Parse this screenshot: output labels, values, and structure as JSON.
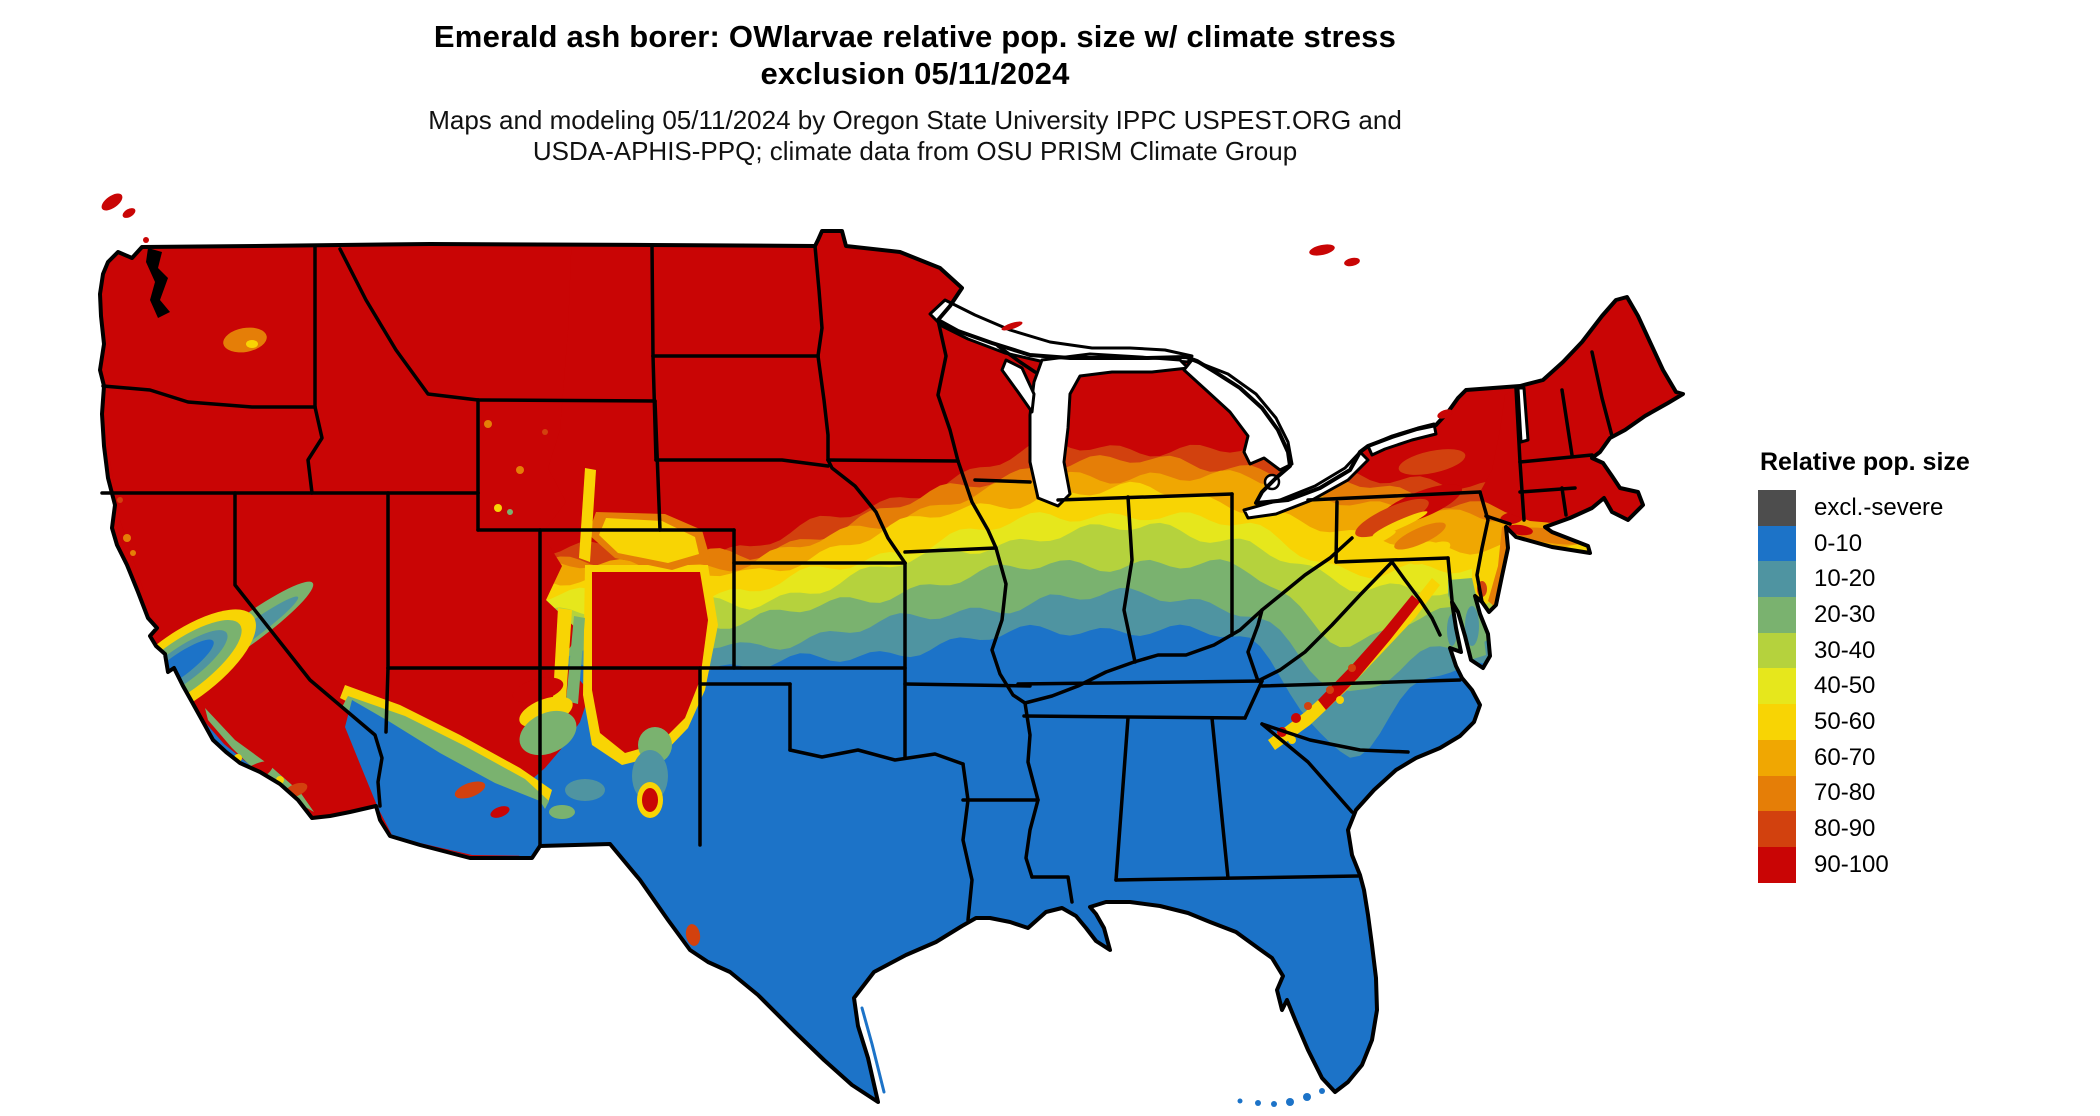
{
  "title": {
    "line1": "Emerald ash borer: OWlarvae relative pop. size w/ climate stress",
    "line2": "exclusion 05/11/2024"
  },
  "subtitle": {
    "line1": "Maps and modeling 05/11/2024 by Oregon State University IPPC USPEST.ORG and",
    "line2": "USDA-APHIS-PPQ; climate data from OSU PRISM Climate Group"
  },
  "legend": {
    "title": "Relative pop. size",
    "items": [
      {
        "label": "excl.-severe",
        "color": "#4d4d4d"
      },
      {
        "label": "0-10",
        "color": "#1c73c8"
      },
      {
        "label": "10-20",
        "color": "#4f94a1"
      },
      {
        "label": "20-30",
        "color": "#7ab26f"
      },
      {
        "label": "30-40",
        "color": "#b5d23d"
      },
      {
        "label": "40-50",
        "color": "#e6e71c"
      },
      {
        "label": "50-60",
        "color": "#f8d404"
      },
      {
        "label": "60-70",
        "color": "#f0a702"
      },
      {
        "label": "70-80",
        "color": "#e57e07"
      },
      {
        "label": "80-90",
        "color": "#d2410e"
      },
      {
        "label": "90-100",
        "color": "#c90505"
      }
    ]
  },
  "map": {
    "region_outline_color": "#000000",
    "state_border_color": "#000000",
    "water_color": "#ffffff"
  }
}
